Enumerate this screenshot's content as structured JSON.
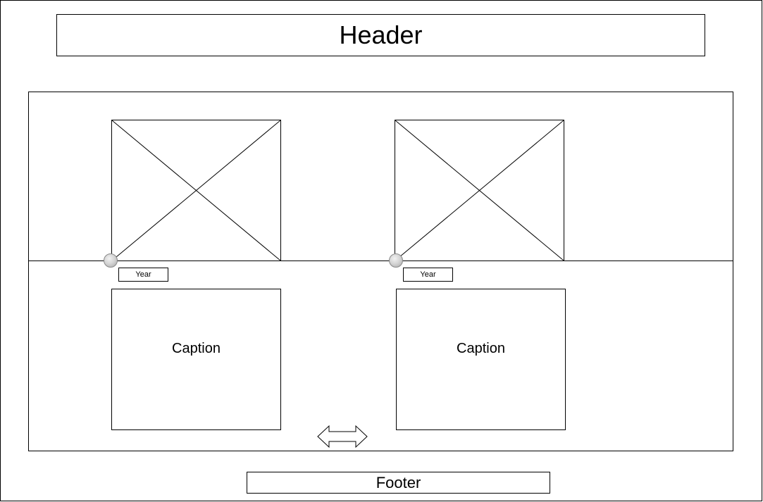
{
  "header": {
    "label": "Header"
  },
  "footer": {
    "label": "Footer"
  },
  "timeline": {
    "entries": [
      {
        "year": "Year",
        "caption": "Caption"
      },
      {
        "year": "Year",
        "caption": "Caption"
      }
    ]
  },
  "icons": {
    "image_placeholder": "image-placeholder-icon",
    "node": "timeline-node-icon",
    "scroll": "horizontal-arrow-icon"
  },
  "colors": {
    "stroke": "#000000",
    "node_fill": "#c8c8c8",
    "background": "#ffffff"
  }
}
